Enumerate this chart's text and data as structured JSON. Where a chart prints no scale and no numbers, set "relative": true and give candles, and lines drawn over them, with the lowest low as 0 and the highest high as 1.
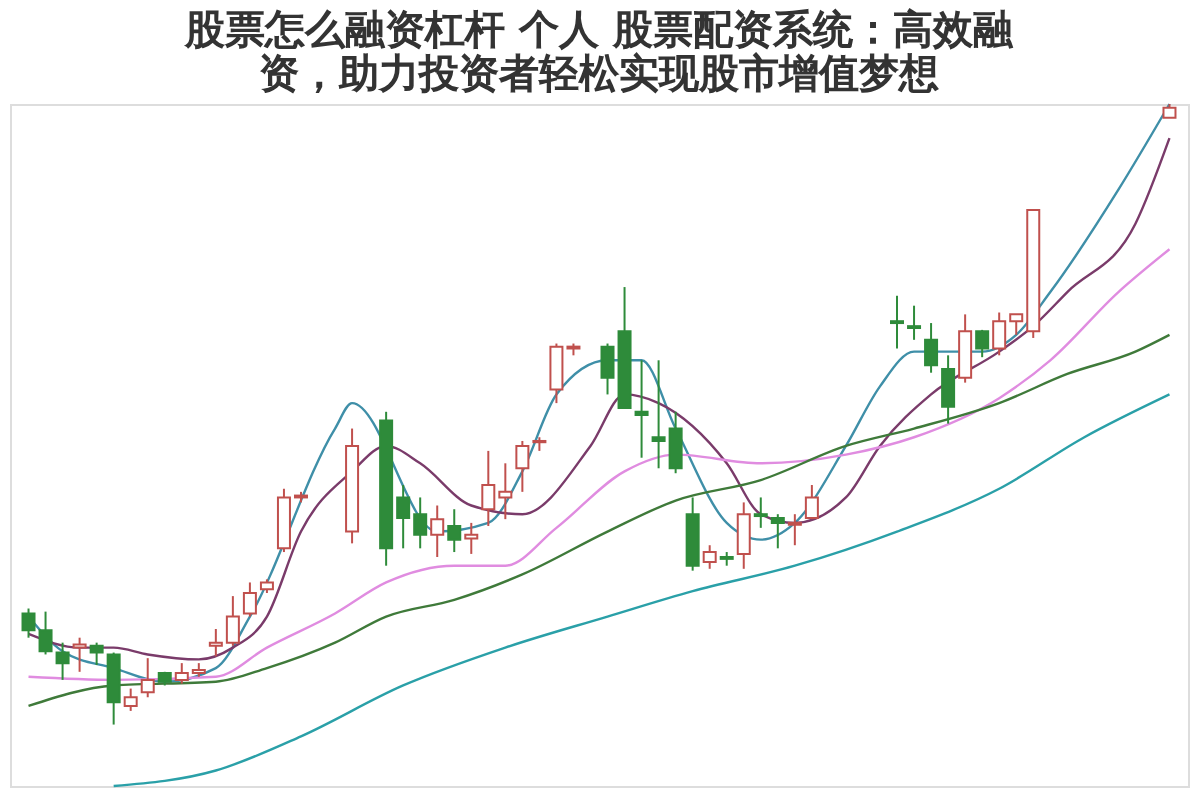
{
  "chart_data": {
    "type": "candlestick",
    "relative": true,
    "title": [
      "股票怎么融资杠杆 个人 股票配资系统：高效融",
      "资，助力投资者轻松实现股市增值梦想"
    ],
    "categories": [
      null,
      null,
      null,
      null,
      null,
      null,
      null,
      null,
      null,
      null,
      null,
      null,
      null,
      null,
      null,
      null,
      null,
      null,
      null,
      null,
      null,
      null,
      null,
      null,
      null,
      null,
      null,
      null,
      null,
      null,
      null,
      null,
      null,
      null,
      null,
      null,
      null,
      null,
      null,
      null,
      null,
      null,
      null,
      null,
      null,
      null,
      null,
      null,
      null,
      null,
      null,
      null,
      null,
      null,
      null,
      null,
      null,
      null,
      null,
      null,
      null,
      null,
      null,
      null,
      null,
      null,
      null,
      null
    ],
    "ohlc": [
      [
        0.179,
        0.187,
        0.14,
        0.152
      ],
      [
        0.152,
        0.182,
        0.113,
        0.118
      ],
      [
        0.116,
        0.132,
        0.072,
        0.099
      ],
      [
        0.124,
        0.14,
        0.085,
        0.129
      ],
      [
        0.127,
        0.132,
        0.096,
        0.116
      ],
      [
        0.113,
        0.116,
        0,
        0.036
      ],
      [
        0.03,
        0.058,
        0.022,
        0.044
      ],
      [
        0.052,
        0.107,
        0.044,
        0.072
      ],
      [
        0.083,
        0.085,
        0.063,
        0.069
      ],
      [
        0.072,
        0.099,
        0.066,
        0.083
      ],
      [
        0.083,
        0.099,
        0.077,
        0.088
      ],
      [
        0.127,
        0.154,
        0.11,
        0.132
      ],
      [
        0.132,
        0.207,
        0.127,
        0.174
      ],
      [
        0.179,
        0.229,
        0.174,
        0.212
      ],
      [
        0.218,
        0.234,
        0.212,
        0.229
      ],
      [
        0.284,
        0.38,
        0.278,
        0.366
      ],
      [
        0.366,
        0.375,
        0.358,
        0.369
      ],
      null,
      null,
      [
        0.311,
        0.477,
        0.292,
        0.449
      ],
      null,
      [
        0.49,
        0.504,
        0.256,
        0.284
      ],
      [
        0.366,
        0.386,
        0.284,
        0.333
      ],
      [
        0.339,
        0.366,
        0.284,
        0.306
      ],
      [
        0.306,
        0.353,
        0.27,
        0.331
      ],
      [
        0.32,
        0.347,
        0.278,
        0.298
      ],
      [
        0.3,
        0.325,
        0.275,
        0.306
      ],
      [
        0.347,
        0.441,
        0.32,
        0.386
      ],
      [
        0.366,
        0.421,
        0.331,
        0.375
      ],
      [
        0.413,
        0.457,
        0.375,
        0.449
      ],
      [
        0.455,
        0.463,
        0.441,
        0.457
      ],
      [
        0.54,
        0.614,
        0.518,
        0.609
      ],
      [
        0.606,
        0.614,
        0.595,
        0.609
      ],
      null,
      [
        0.609,
        0.614,
        0.532,
        0.559
      ],
      [
        0.634,
        0.705,
        0.51,
        0.51
      ],
      [
        0.504,
        0.587,
        0.43,
        0.499
      ],
      [
        0.463,
        0.587,
        0.413,
        0.457
      ],
      [
        0.477,
        0.504,
        0.405,
        0.413
      ],
      [
        0.339,
        0.366,
        0.248,
        0.256
      ],
      [
        0.262,
        0.289,
        0.251,
        0.278
      ],
      [
        0.27,
        0.278,
        0.256,
        0.267
      ],
      [
        0.275,
        0.358,
        0.251,
        0.339
      ],
      [
        0.339,
        0.366,
        0.317,
        0.336
      ],
      [
        0.333,
        0.339,
        0.284,
        0.325
      ],
      [
        0.322,
        0.339,
        0.289,
        0.325
      ],
      [
        0.333,
        0.386,
        0.331,
        0.366
      ],
      null,
      null,
      null,
      null,
      [
        0.65,
        0.691,
        0.606,
        0.647
      ],
      [
        0.642,
        0.675,
        0.62,
        0.639
      ],
      [
        0.62,
        0.647,
        0.567,
        0.579
      ],
      [
        0.573,
        0.595,
        0.485,
        0.512
      ],
      [
        0.559,
        0.661,
        0.551,
        0.634
      ],
      [
        0.634,
        0.636,
        0.592,
        0.606
      ],
      [
        0.606,
        0.664,
        0.595,
        0.65
      ],
      [
        0.65,
        0.661,
        0.628,
        0.661
      ],
      [
        0.634,
        0.829,
        0.623,
        0.829
      ],
      null,
      null,
      null,
      null,
      null,
      null,
      null,
      [
        0.978,
        1,
        0.978,
        0.994
      ]
    ],
    "colors": [
      "#2e8b3a",
      "#2e8b3a",
      "#2e8b3a",
      "#c0504d",
      "#2e8b3a",
      "#2e8b3a",
      "#c0504d",
      "#c0504d",
      "#2e8b3a",
      "#c0504d",
      "#c0504d",
      "#c0504d",
      "#c0504d",
      "#c0504d",
      "#c0504d",
      "#c0504d",
      "#c0504d",
      null,
      null,
      "#c0504d",
      null,
      "#2e8b3a",
      "#2e8b3a",
      "#2e8b3a",
      "#c0504d",
      "#2e8b3a",
      "#c0504d",
      "#c0504d",
      "#c0504d",
      "#c0504d",
      "#c0504d",
      "#c0504d",
      "#c0504d",
      null,
      "#2e8b3a",
      "#2e8b3a",
      "#2e8b3a",
      "#2e8b3a",
      "#2e8b3a",
      "#2e8b3a",
      "#c0504d",
      "#2e8b3a",
      "#c0504d",
      "#2e8b3a",
      "#2e8b3a",
      "#c0504d",
      "#c0504d",
      null,
      null,
      null,
      null,
      "#2e8b3a",
      "#2e8b3a",
      "#2e8b3a",
      "#2e8b3a",
      "#c0504d",
      "#2e8b3a",
      "#c0504d",
      "#c0504d",
      "#c0504d",
      null,
      null,
      null,
      null,
      null,
      null,
      null,
      "#c0504d"
    ],
    "series": [
      {
        "type": "line",
        "color": "#3f8fa8",
        "values": [
          0.174,
          null,
          0.118,
          null,
          null,
          0.091,
          null,
          null,
          0.069,
          null,
          null,
          0.091,
          null,
          0.174,
          null,
          null,
          null,
          null,
          0.477,
          0.518,
          null,
          null,
          null,
          null,
          0.311,
          null,
          null,
          0.325,
          null,
          0.408,
          null,
          0.532,
          null,
          null,
          0.587,
          null,
          0.587,
          null,
          0.477,
          null,
          null,
          0.325,
          null,
          0.298,
          null,
          0.325,
          null,
          null,
          0.449,
          null,
          0.545,
          null,
          0.601,
          null,
          null,
          null,
          0.601,
          null,
          0.628,
          null,
          0.697,
          null,
          null,
          null,
          0.862,
          null,
          null,
          1
        ]
      },
      {
        "type": "line",
        "color": "#7a3b6a",
        "values": [
          0.146,
          null,
          null,
          0.124,
          null,
          0.124,
          null,
          0.113,
          null,
          null,
          0.105,
          null,
          0.124,
          null,
          0.174,
          null,
          0.311,
          null,
          null,
          0.408,
          null,
          0.449,
          null,
          0.421,
          null,
          null,
          0.353,
          null,
          null,
          0.339,
          null,
          null,
          null,
          0.449,
          null,
          0.532,
          null,
          0.518,
          null,
          null,
          null,
          0.421,
          null,
          0.339,
          null,
          0.325,
          null,
          null,
          0.366,
          null,
          0.449,
          null,
          null,
          0.532,
          null,
          null,
          null,
          0.601,
          null,
          0.642,
          null,
          0.697,
          null,
          null,
          null,
          0.807,
          null,
          0.945
        ]
      },
      {
        "type": "line",
        "color": "#e08ce0",
        "values": [
          0.077,
          null,
          null,
          null,
          null,
          0.072,
          null,
          null,
          null,
          null,
          null,
          0.077,
          null,
          null,
          0.124,
          null,
          null,
          null,
          0.179,
          null,
          null,
          0.229,
          null,
          null,
          null,
          0.256,
          null,
          null,
          0.256,
          null,
          null,
          0.317,
          null,
          null,
          null,
          0.408,
          null,
          null,
          0.435,
          null,
          null,
          null,
          null,
          0.421,
          null,
          null,
          null,
          null,
          0.435,
          null,
          null,
          null,
          0.463,
          null,
          null,
          null,
          null,
          0.526,
          null,
          null,
          0.587,
          null,
          null,
          null,
          0.697,
          null,
          null,
          0.766
        ]
      },
      {
        "type": "line",
        "color": "#3f7a3a",
        "values": [
          0.03,
          null,
          null,
          null,
          null,
          0.063,
          null,
          null,
          null,
          null,
          null,
          0.069,
          null,
          null,
          0.091,
          null,
          null,
          null,
          0.132,
          null,
          null,
          0.174,
          null,
          null,
          null,
          0.201,
          null,
          null,
          null,
          0.242,
          null,
          null,
          null,
          null,
          0.311,
          null,
          null,
          null,
          0.361,
          null,
          null,
          null,
          null,
          0.394,
          null,
          null,
          null,
          null,
          0.449,
          null,
          null,
          null,
          0.477,
          null,
          null,
          null,
          null,
          0.518,
          null,
          null,
          null,
          0.565,
          null,
          null,
          null,
          0.601,
          null,
          0.628
        ]
      },
      {
        "type": "line",
        "color": "#2aa0a8",
        "values": [
          null,
          null,
          null,
          null,
          null,
          -0.099,
          null,
          null,
          null,
          null,
          null,
          -0.074,
          null,
          null,
          null,
          null,
          -0.019,
          null,
          null,
          null,
          null,
          null,
          0.063,
          null,
          null,
          null,
          null,
          null,
          0.124,
          null,
          null,
          null,
          null,
          null,
          0.174,
          null,
          null,
          null,
          null,
          0.215,
          null,
          null,
          null,
          null,
          null,
          0.256,
          null,
          null,
          null,
          null,
          null,
          0.311,
          null,
          null,
          null,
          null,
          null,
          0.38,
          null,
          null,
          null,
          null,
          0.463,
          null,
          null,
          null,
          null,
          0.532
        ]
      }
    ]
  }
}
